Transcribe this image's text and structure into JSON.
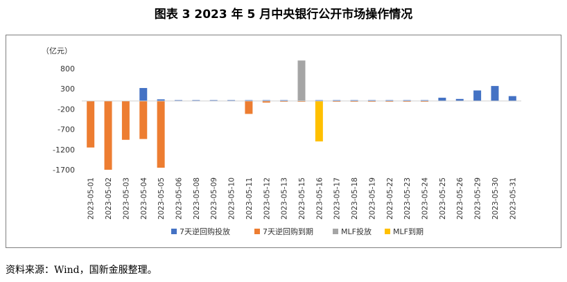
{
  "title": "图表 3  2023 年 5 月中央银行公开市场操作情况",
  "source": "资料来源：Wind，国新金服整理。",
  "chart_data": {
    "type": "bar",
    "unit_label": "（亿元）",
    "ylim": [
      -1700,
      800
    ],
    "yticks": [
      800,
      300,
      -200,
      -700,
      -1200,
      -1700
    ],
    "grid": false,
    "legend_position": "bottom",
    "categories": [
      "2023-05-01",
      "2023-05-02",
      "2023-05-03",
      "2023-05-04",
      "2023-05-05",
      "2023-05-06",
      "2023-05-08",
      "2023-05-09",
      "2023-05-10",
      "2023-05-11",
      "2023-05-12",
      "2023-05-13",
      "2023-05-15",
      "2023-05-16",
      "2023-05-17",
      "2023-05-18",
      "2023-05-19",
      "2023-05-22",
      "2023-05-23",
      "2023-05-24",
      "2023-05-25",
      "2023-05-26",
      "2023-05-29",
      "2023-05-30",
      "2023-05-31"
    ],
    "series": [
      {
        "name": "7天逆回购投放",
        "color": "#4472c4",
        "values": [
          0,
          0,
          0,
          320,
          40,
          20,
          20,
          20,
          20,
          20,
          20,
          20,
          20,
          20,
          20,
          20,
          20,
          20,
          20,
          20,
          80,
          50,
          260,
          370,
          120
        ]
      },
      {
        "name": "7天逆回购到期",
        "color": "#ed7d31",
        "values": [
          -1150,
          -1700,
          -960,
          -940,
          -1650,
          0,
          0,
          0,
          0,
          -320,
          -40,
          -20,
          -20,
          -20,
          -20,
          -20,
          -20,
          -20,
          -20,
          -20,
          0,
          0,
          0,
          0,
          0
        ]
      },
      {
        "name": "MLF投放",
        "color": "#a5a5a5",
        "values": [
          0,
          0,
          0,
          0,
          0,
          0,
          0,
          0,
          0,
          0,
          0,
          0,
          1000,
          0,
          0,
          0,
          0,
          0,
          0,
          0,
          0,
          0,
          0,
          0,
          0
        ]
      },
      {
        "name": "MLF到期",
        "color": "#ffc000",
        "values": [
          0,
          0,
          0,
          0,
          0,
          0,
          0,
          0,
          0,
          0,
          0,
          0,
          0,
          -1000,
          0,
          0,
          0,
          0,
          0,
          0,
          0,
          0,
          0,
          0,
          0
        ]
      }
    ]
  }
}
